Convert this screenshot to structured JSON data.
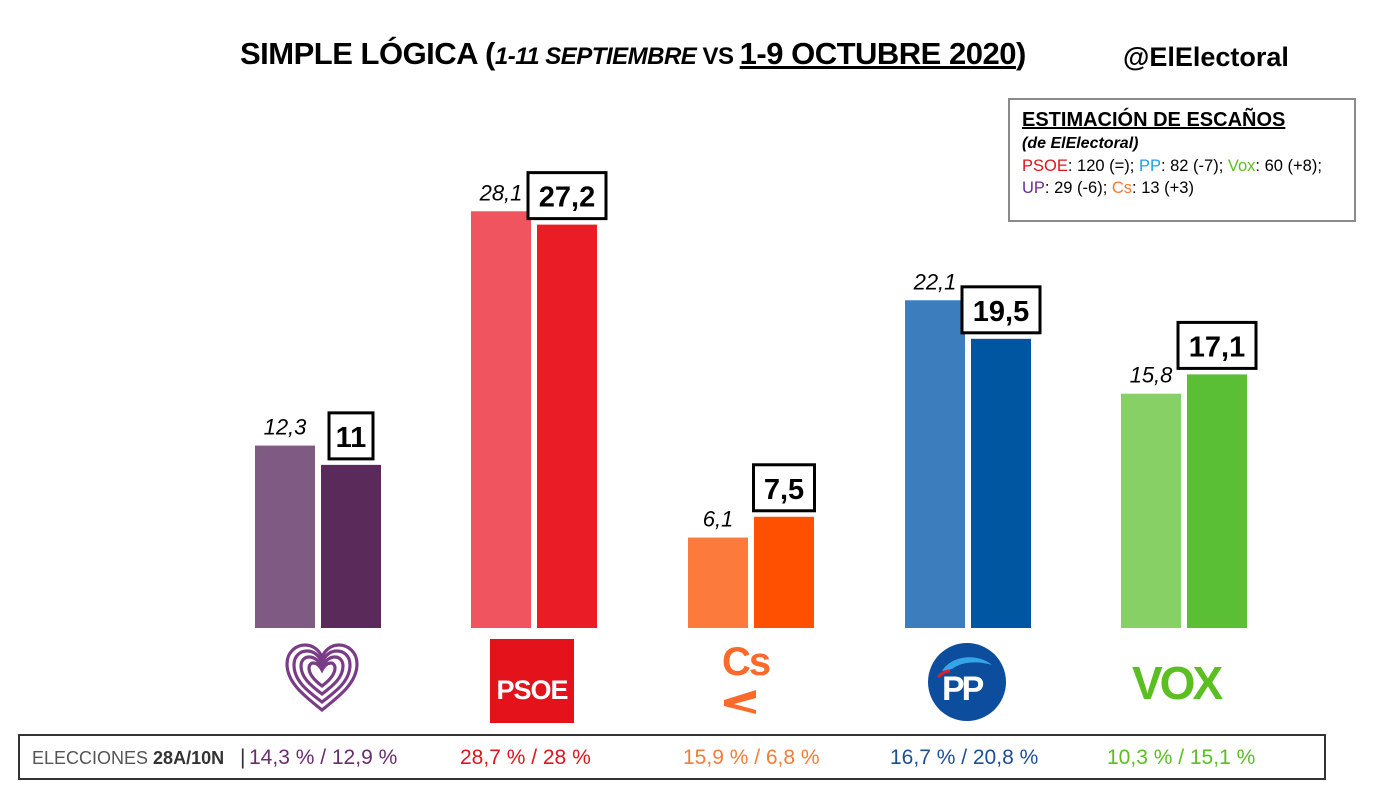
{
  "header": {
    "title_main": "SIMPLE LÓGICA (",
    "title_period1": "1-11 SEPTIEMBRE",
    "title_vs": " VS ",
    "title_period2": "1-9 OCTUBRE 2020",
    "title_close": ")",
    "handle": "@ElElectoral"
  },
  "seats_box": {
    "title": "ESTIMACIÓN DE ESCAÑOS",
    "subtitle": "(de ElElectoral)",
    "entries": [
      {
        "party": "PSOE",
        "text": ": 120 (=); ",
        "color": "#e0141e"
      },
      {
        "party": "PP",
        "text": ": 82 (-7); ",
        "color": "#1ea0e6"
      },
      {
        "party": "Vox",
        "text": ": 60 (+8); ",
        "color": "#5bbf21"
      },
      {
        "party": "UP",
        "text": ": 29 (-6); ",
        "color": "#6a2c91"
      },
      {
        "party": "Cs",
        "text": ": 13 (+3)",
        "color": "#fa7a2d"
      }
    ]
  },
  "chart_data": {
    "type": "bar",
    "categories": [
      "UP",
      "PSOE",
      "Cs",
      "PP",
      "VOX"
    ],
    "series": [
      {
        "values": [
          12.3,
          28.1,
          6.1,
          22.1,
          15.8
        ]
      },
      {
        "values": [
          11,
          27.2,
          7.5,
          19.5,
          17.1
        ]
      }
    ],
    "value_labels": [
      [
        "12,3",
        "28,1",
        "6,1",
        "22,1",
        "15,8"
      ],
      [
        "11",
        "27,2",
        "7,5",
        "19,5",
        "17,1"
      ]
    ],
    "colors_prev": [
      "#7f5a83",
      "#f0545f",
      "#fd7a3d",
      "#3b7dbd",
      "#86d066"
    ],
    "colors_curr": [
      "#5a2a5a",
      "#ea1d26",
      "#fe5000",
      "#0056a0",
      "#5bbf35"
    ],
    "ylim": [
      0,
      30
    ]
  },
  "logos": {
    "psoe": "PSOE",
    "cs": "Cs",
    "pp": "PP",
    "vox": "VOX"
  },
  "elections": {
    "label_prefix": "ELECCIONES ",
    "label_bold": "28A/10N",
    "label_sep": "|",
    "results": [
      {
        "text": "14,3 % / 12,9 %",
        "color": "#6a2c70"
      },
      {
        "text": "28,7  % / 28 %",
        "color": "#e0141e"
      },
      {
        "text": "15,9 % / 6,8 %",
        "color": "#f47c3c"
      },
      {
        "text": "16,7 % / 20,8 %",
        "color": "#1c4f99"
      },
      {
        "text": "10,3 % / 15,1 %",
        "color": "#5bbf21"
      }
    ]
  }
}
